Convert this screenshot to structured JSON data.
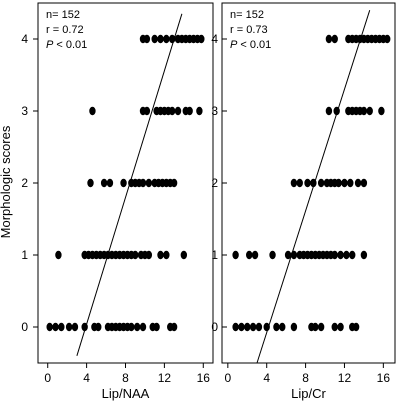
{
  "chart_data": [
    {
      "type": "scatter",
      "xlabel": "Lip/NAA",
      "ylabel": "Morphologic scores",
      "xlim": [
        -1,
        17
      ],
      "ylim": [
        -0.5,
        4.5
      ],
      "xticks": [
        "0",
        "4",
        "8",
        "12",
        "16"
      ],
      "yticks": [
        "0",
        "1",
        "2",
        "3",
        "4"
      ],
      "stats": [
        "n= 152",
        "r = 0.72",
        "P < 0.01"
      ],
      "grid": false,
      "regression_line": {
        "x": [
          3.0,
          13.8
        ],
        "y": [
          -0.4,
          4.35
        ]
      },
      "series": [
        {
          "points": [
            [
              0.2,
              0
            ],
            [
              0.8,
              0
            ],
            [
              1.4,
              0
            ],
            [
              2.2,
              0
            ],
            [
              2.8,
              0
            ],
            [
              3.8,
              0
            ],
            [
              4.8,
              0
            ],
            [
              5.2,
              0
            ],
            [
              6.2,
              0
            ],
            [
              6.6,
              0
            ],
            [
              7.0,
              0
            ],
            [
              7.4,
              0
            ],
            [
              7.8,
              0
            ],
            [
              8.2,
              0
            ],
            [
              8.6,
              0
            ],
            [
              9.2,
              0
            ],
            [
              9.8,
              0
            ],
            [
              10.8,
              0
            ],
            [
              11.2,
              0
            ],
            [
              12.6,
              0
            ],
            [
              13.0,
              0
            ],
            [
              1.1,
              1
            ],
            [
              3.8,
              1
            ],
            [
              4.2,
              1
            ],
            [
              4.6,
              1
            ],
            [
              5.0,
              1
            ],
            [
              5.4,
              1
            ],
            [
              5.8,
              1
            ],
            [
              6.2,
              1
            ],
            [
              6.6,
              1
            ],
            [
              7.0,
              1
            ],
            [
              7.4,
              1
            ],
            [
              7.8,
              1
            ],
            [
              8.2,
              1
            ],
            [
              8.6,
              1
            ],
            [
              9.0,
              1
            ],
            [
              9.6,
              1
            ],
            [
              10.0,
              1
            ],
            [
              10.4,
              1
            ],
            [
              11.6,
              1
            ],
            [
              12.2,
              1
            ],
            [
              14.0,
              1
            ],
            [
              4.4,
              2
            ],
            [
              5.8,
              2
            ],
            [
              6.4,
              2
            ],
            [
              7.8,
              2
            ],
            [
              8.6,
              2
            ],
            [
              9.0,
              2
            ],
            [
              9.4,
              2
            ],
            [
              9.8,
              2
            ],
            [
              10.4,
              2
            ],
            [
              11.0,
              2
            ],
            [
              11.4,
              2
            ],
            [
              11.8,
              2
            ],
            [
              12.2,
              2
            ],
            [
              12.6,
              2
            ],
            [
              13.0,
              2
            ],
            [
              4.6,
              3
            ],
            [
              9.8,
              3
            ],
            [
              10.2,
              3
            ],
            [
              11.2,
              3
            ],
            [
              11.6,
              3
            ],
            [
              12.0,
              3
            ],
            [
              12.4,
              3
            ],
            [
              12.8,
              3
            ],
            [
              13.4,
              3
            ],
            [
              14.2,
              3
            ],
            [
              14.6,
              3
            ],
            [
              15.6,
              3
            ],
            [
              9.8,
              4
            ],
            [
              10.2,
              4
            ],
            [
              11.0,
              4
            ],
            [
              11.6,
              4
            ],
            [
              12.2,
              4
            ],
            [
              12.8,
              4
            ],
            [
              13.4,
              4
            ],
            [
              13.8,
              4
            ],
            [
              14.2,
              4
            ],
            [
              14.6,
              4
            ],
            [
              15.0,
              4
            ],
            [
              15.4,
              4
            ],
            [
              15.8,
              4
            ]
          ]
        }
      ]
    },
    {
      "type": "scatter",
      "xlabel": "Lip/Cr",
      "ylabel": "",
      "xlim": [
        -0.6,
        17.2
      ],
      "ylim": [
        -0.5,
        4.5
      ],
      "xticks": [
        "0",
        "4",
        "8",
        "12",
        "16"
      ],
      "yticks": [
        "0",
        "1",
        "2",
        "3",
        "4"
      ],
      "stats": [
        "n= 152",
        "r = 0.73",
        "P < 0.01"
      ],
      "grid": false,
      "regression_line": {
        "x": [
          3.0,
          14.6
        ],
        "y": [
          -0.5,
          4.4
        ]
      },
      "series": [
        {
          "points": [
            [
              0.8,
              0
            ],
            [
              1.4,
              0
            ],
            [
              2.0,
              0
            ],
            [
              2.6,
              0
            ],
            [
              3.2,
              0
            ],
            [
              4.0,
              0
            ],
            [
              5.0,
              0
            ],
            [
              5.6,
              0
            ],
            [
              6.8,
              0
            ],
            [
              8.6,
              0
            ],
            [
              9.0,
              0
            ],
            [
              9.6,
              0
            ],
            [
              11.0,
              0
            ],
            [
              11.6,
              0
            ],
            [
              12.8,
              0
            ],
            [
              13.2,
              0
            ],
            [
              0.8,
              1
            ],
            [
              2.2,
              1
            ],
            [
              2.8,
              1
            ],
            [
              4.6,
              1
            ],
            [
              6.2,
              1
            ],
            [
              6.8,
              1
            ],
            [
              7.4,
              1
            ],
            [
              7.8,
              1
            ],
            [
              8.2,
              1
            ],
            [
              8.6,
              1
            ],
            [
              9.0,
              1
            ],
            [
              9.4,
              1
            ],
            [
              9.8,
              1
            ],
            [
              10.2,
              1
            ],
            [
              10.6,
              1
            ],
            [
              11.0,
              1
            ],
            [
              11.6,
              1
            ],
            [
              12.2,
              1
            ],
            [
              12.8,
              1
            ],
            [
              14.0,
              1
            ],
            [
              6.8,
              2
            ],
            [
              7.4,
              2
            ],
            [
              8.2,
              2
            ],
            [
              8.8,
              2
            ],
            [
              9.6,
              2
            ],
            [
              10.2,
              2
            ],
            [
              10.6,
              2
            ],
            [
              11.0,
              2
            ],
            [
              11.4,
              2
            ],
            [
              12.0,
              2
            ],
            [
              12.6,
              2
            ],
            [
              13.4,
              2
            ],
            [
              14.0,
              2
            ],
            [
              10.4,
              3
            ],
            [
              11.2,
              3
            ],
            [
              12.4,
              3
            ],
            [
              12.8,
              3
            ],
            [
              13.2,
              3
            ],
            [
              13.6,
              3
            ],
            [
              14.0,
              3
            ],
            [
              14.6,
              3
            ],
            [
              15.8,
              3
            ],
            [
              10.4,
              4
            ],
            [
              11.0,
              4
            ],
            [
              12.4,
              4
            ],
            [
              12.8,
              4
            ],
            [
              13.2,
              4
            ],
            [
              13.6,
              4
            ],
            [
              14.0,
              4
            ],
            [
              14.4,
              4
            ],
            [
              14.8,
              4
            ],
            [
              15.2,
              4
            ],
            [
              15.6,
              4
            ],
            [
              16.0,
              4
            ],
            [
              16.4,
              4
            ]
          ]
        }
      ]
    }
  ]
}
